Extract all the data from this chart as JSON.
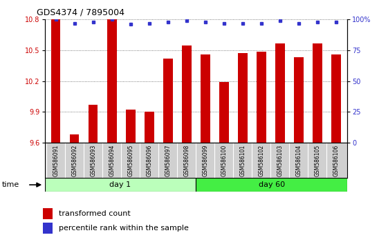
{
  "title": "GDS4374 / 7895004",
  "samples": [
    "GSM586091",
    "GSM586092",
    "GSM586093",
    "GSM586094",
    "GSM586095",
    "GSM586096",
    "GSM586097",
    "GSM586098",
    "GSM586099",
    "GSM586100",
    "GSM586101",
    "GSM586102",
    "GSM586103",
    "GSM586104",
    "GSM586105",
    "GSM586106"
  ],
  "bar_values": [
    10.8,
    9.68,
    9.97,
    10.8,
    9.92,
    9.9,
    10.42,
    10.55,
    10.46,
    10.19,
    10.47,
    10.49,
    10.57,
    10.43,
    10.57,
    10.46
  ],
  "percentile_values": [
    100,
    97,
    98,
    100,
    96,
    97,
    98,
    99,
    98,
    97,
    97,
    97,
    99,
    97,
    98,
    98
  ],
  "ylim_left": [
    9.6,
    10.8
  ],
  "ylim_right": [
    0,
    100
  ],
  "yticks_left": [
    9.6,
    9.9,
    10.2,
    10.5,
    10.8
  ],
  "yticks_right": [
    0,
    25,
    50,
    75,
    100
  ],
  "ytick_labels_right": [
    "0",
    "25",
    "50",
    "75",
    "100%"
  ],
  "bar_color": "#cc0000",
  "dot_color": "#3333cc",
  "day1_color": "#bbffbb",
  "day60_color": "#44ee44",
  "day1_samples": 8,
  "day60_samples": 8,
  "day1_label": "day 1",
  "day60_label": "day 60",
  "time_label": "time",
  "legend_bar_label": "transformed count",
  "legend_dot_label": "percentile rank within the sample",
  "grid_color": "#555555",
  "plot_bg_color": "#ffffff",
  "background_color": "#ffffff",
  "sample_box_color": "#d0d0d0",
  "bar_width": 0.5
}
